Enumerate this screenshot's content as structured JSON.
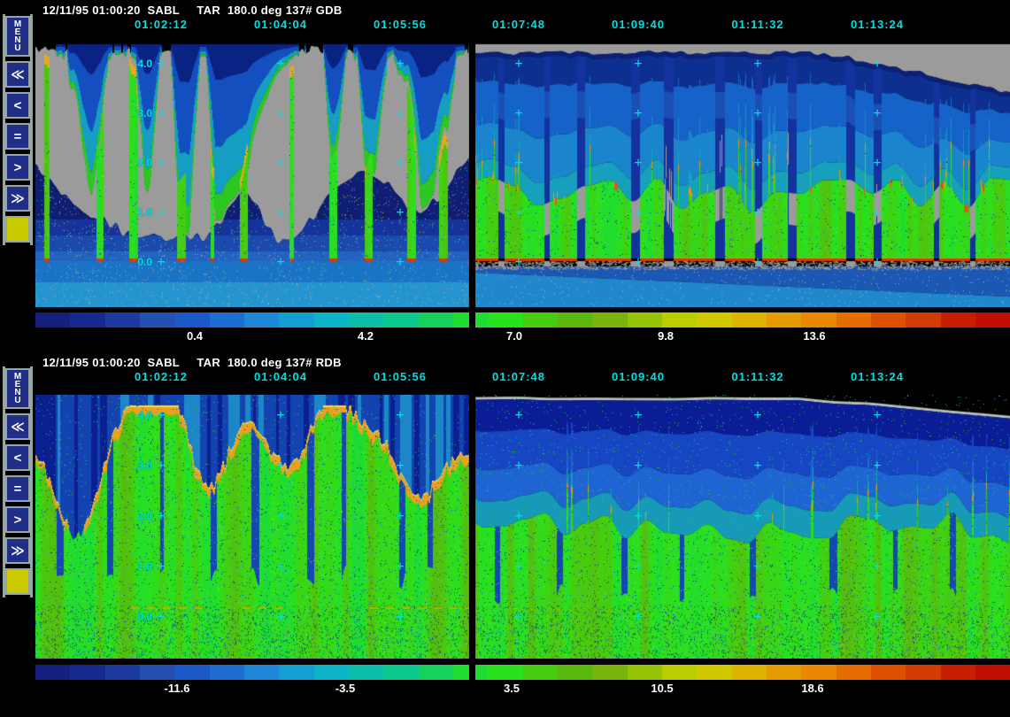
{
  "app": {
    "name": "SABL lidar echogram display",
    "background": "#000000"
  },
  "palette": {
    "cyan_labels": "#00dfdf",
    "title_text": "#ffffff",
    "button_face": "#202e87",
    "button_border": "#97a5a5",
    "button_glyph": "#ffffff",
    "swatch_yellow": "#c9ca00",
    "plot_gray": "#9b9b9b",
    "colorbar_label": "#ffffff",
    "divider": "#000000"
  },
  "colormap": [
    "#141f7f",
    "#17298f",
    "#1c3aa0",
    "#2350b2",
    "#1b59c8",
    "#1e6ed2",
    "#1e87d7",
    "#12a0d2",
    "#0cb4c8",
    "#0abeaa",
    "#0cc88c",
    "#14d25a",
    "#1edc32",
    "#2ae11e",
    "#46cd0f",
    "#5ab80f",
    "#78b40a",
    "#96c305",
    "#b9cd00",
    "#d2c800",
    "#dcb400",
    "#e69b00",
    "#eb8700",
    "#e66e00",
    "#dc5000",
    "#d23c00",
    "#c81e00",
    "#be0f00"
  ],
  "sidebar": {
    "menu": {
      "label": "MENU"
    },
    "buttons": [
      {
        "name": "fast-backward-button",
        "glyph": "≪"
      },
      {
        "name": "step-backward-button",
        "glyph": "<"
      },
      {
        "name": "pause-button",
        "glyph": "="
      },
      {
        "name": "step-forward-button",
        "glyph": ">"
      },
      {
        "name": "fast-forward-button",
        "glyph": "≫"
      }
    ],
    "swatch_color": "#c9ca00"
  },
  "panels": [
    {
      "channel": "GDB",
      "title": "12/11/95 01:00:20  SABL     TAR  180.0 deg 137# GDB",
      "time_labels": [
        "01:02:12",
        "01:04:04",
        "01:05:56",
        "01:07:48",
        "01:09:40",
        "01:11:32",
        "01:13:24"
      ],
      "y_ticks": [
        "4.0",
        "3.0",
        "2.0",
        "1.0",
        "0.0"
      ],
      "colorbar_labels": [
        "0.4",
        "4.2",
        "7.0",
        "9.8",
        "13.6"
      ]
    },
    {
      "channel": "RDB",
      "title": "12/11/95 01:00:20  SABL     TAR  180.0 deg 137# RDB",
      "time_labels": [
        "01:02:12",
        "01:04:04",
        "01:05:56",
        "01:07:48",
        "01:09:40",
        "01:11:32",
        "01:13:24"
      ],
      "y_ticks": [
        "4.0",
        "3.0",
        "2.0",
        "1.0",
        "0.0"
      ],
      "colorbar_labels": [
        "-11.6",
        "-3.5",
        "3.5",
        "10.5",
        "18.6"
      ]
    }
  ],
  "chart_data": [
    {
      "type": "heatmap",
      "title": "12/11/95 01:00:20 SABL TAR 180.0 deg 137# GDB",
      "x": {
        "ticks": [
          "01:02:12",
          "01:04:04",
          "01:05:56",
          "01:07:48",
          "01:09:40",
          "01:11:32",
          "01:13:24"
        ]
      },
      "y": {
        "ticks": [
          4.0,
          3.0,
          2.0,
          1.0,
          0.0
        ]
      },
      "colorbar": {
        "ticks": [
          0.4,
          4.2,
          7.0,
          9.8,
          13.6
        ],
        "position": "bottom"
      },
      "grid": "cyan plus markers at tick intersections",
      "layout": "two time segments split by black vertical divider",
      "render": {
        "style": "gdb",
        "seed": 11
      }
    },
    {
      "type": "heatmap",
      "title": "12/11/95 01:00:20 SABL TAR 180.0 deg 137# RDB",
      "x": {
        "ticks": [
          "01:02:12",
          "01:04:04",
          "01:05:56",
          "01:07:48",
          "01:09:40",
          "01:11:32",
          "01:13:24"
        ]
      },
      "y": {
        "ticks": [
          4.0,
          3.0,
          2.0,
          1.0,
          0.0
        ]
      },
      "colorbar": {
        "ticks": [
          -11.6,
          -3.5,
          3.5,
          10.5,
          18.6
        ],
        "position": "bottom"
      },
      "grid": "cyan plus markers at tick intersections",
      "layout": "two time segments split by black vertical divider",
      "render": {
        "style": "rdb",
        "seed": 29
      }
    }
  ]
}
